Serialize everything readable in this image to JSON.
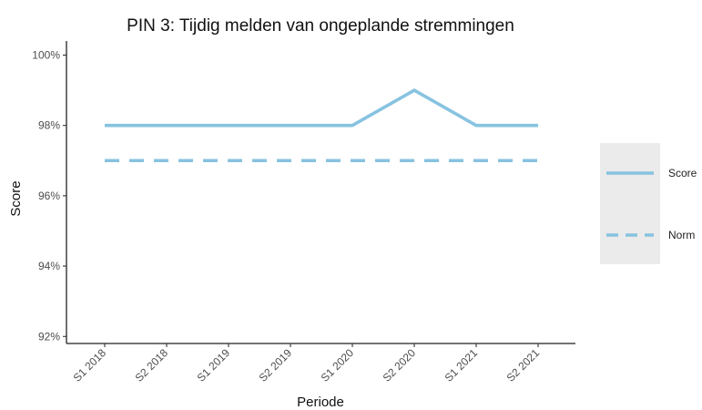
{
  "chart_data": {
    "type": "line",
    "title": "PIN 3: Tijdig melden van ongeplande stremmingen",
    "xlabel": "Periode",
    "ylabel": "Score",
    "categories": [
      "S1 2018",
      "S2 2018",
      "S1 2019",
      "S2 2019",
      "S1 2020",
      "S2 2020",
      "S1 2021",
      "S2 2021"
    ],
    "ylim": [
      91.8,
      100.4
    ],
    "yticks": [
      92,
      94,
      96,
      98,
      100
    ],
    "ytick_labels": [
      "92%",
      "94%",
      "96%",
      "98%",
      "100%"
    ],
    "grid": false,
    "legend_position": "right",
    "series": [
      {
        "name": "Score",
        "style": "solid",
        "color": "#87c3e0",
        "values": [
          98,
          98,
          98,
          98,
          98,
          99,
          98,
          98
        ]
      },
      {
        "name": "Norm",
        "style": "dashed",
        "color": "#87c3e0",
        "values": [
          97,
          97,
          97,
          97,
          97,
          97,
          97,
          97
        ]
      }
    ]
  }
}
